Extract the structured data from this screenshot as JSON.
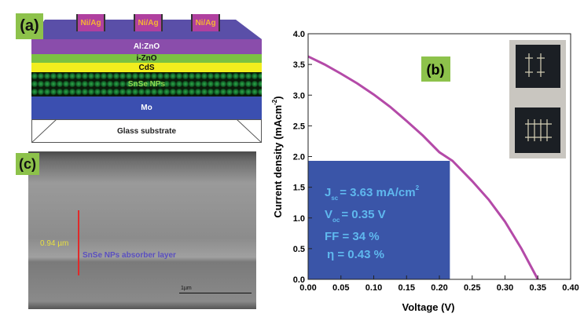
{
  "panel_a": {
    "label": "(a)",
    "contacts": [
      "Ni/Ag",
      "Ni/Ag",
      "Ni/Ag"
    ],
    "layers": [
      "Al:ZnO",
      "i-ZnO",
      "CdS",
      "SnSe NPs",
      "Mo",
      "Glass substrate"
    ],
    "colors": {
      "top": "#5a4fa8",
      "alzno": "#8a4dab",
      "izno": "#7cc142",
      "cds": "#f2ee1e",
      "snse": "#1a7a2a",
      "mo": "#3b4fb0",
      "contact": "#b0409f"
    }
  },
  "panel_c": {
    "label": "(c)",
    "thickness": "0.94 µm",
    "layer_label": "SnSe NPs absorber layer",
    "scale_bar": "1µm"
  },
  "panel_b": {
    "label": "(b)"
  },
  "chart_data": {
    "type": "line",
    "xlabel": "Voltage (V)",
    "ylabel": "Current density (mAcm",
    "ylabel_sup": "-2",
    "ylabel_end": ")",
    "xlim": [
      0,
      0.4
    ],
    "ylim": [
      0,
      4.0
    ],
    "xticks": [
      "0.00",
      "0.05",
      "0.10",
      "0.15",
      "0.20",
      "0.25",
      "0.30",
      "0.35",
      "0.40"
    ],
    "yticks": [
      "0.0",
      "0.5",
      "1.0",
      "1.5",
      "2.0",
      "2.5",
      "3.0",
      "3.5",
      "4.0"
    ],
    "grid": false,
    "series_color": "#b44aa8",
    "x": [
      0,
      0.025,
      0.05,
      0.075,
      0.1,
      0.125,
      0.15,
      0.175,
      0.2,
      0.22,
      0.25,
      0.275,
      0.3,
      0.325,
      0.35
    ],
    "y": [
      3.63,
      3.5,
      3.35,
      3.19,
      3.01,
      2.81,
      2.58,
      2.34,
      2.07,
      1.93,
      1.6,
      1.3,
      0.94,
      0.5,
      0.0
    ],
    "max_power_rect": {
      "v": 0.216,
      "j": 1.93,
      "color": "#3a55a8"
    },
    "annotations": {
      "jsc": {
        "main": "J",
        "sub": "sc",
        "rest": "= 3.63 mA/cm",
        "sup": "2"
      },
      "voc": {
        "main": "V",
        "sub": "oc",
        "rest": "= 0.35 V"
      },
      "ff": "FF = 34 %",
      "eta": "η  = 0.43 %"
    }
  }
}
